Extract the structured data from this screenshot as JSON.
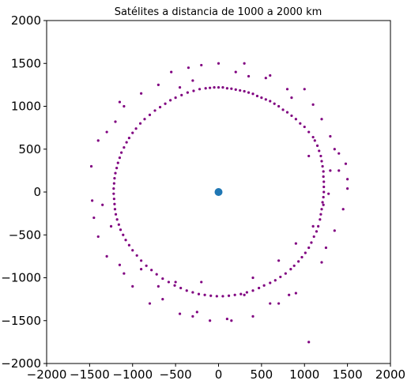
{
  "chart_data": {
    "type": "scatter",
    "title": "Satélites a distancia de 1000 a 2000 km",
    "xlabel": "",
    "ylabel": "",
    "xlim": [
      -2000,
      2000
    ],
    "ylim": [
      -2000,
      2000
    ],
    "xticks": [
      -2000,
      -1500,
      -1000,
      -500,
      0,
      500,
      1000,
      1500,
      2000
    ],
    "yticks": [
      -2000,
      -1500,
      -1000,
      -500,
      0,
      500,
      1000,
      1500,
      2000
    ],
    "grid": false,
    "colors": {
      "satellites": "#800080",
      "center": "#1f77b4"
    },
    "series": [
      {
        "name": "",
        "marker": "small-dot",
        "points": [
          [
            0,
            1220
          ],
          [
            -50,
            1220
          ],
          [
            -100,
            1215
          ],
          [
            50,
            1220
          ],
          [
            100,
            1210
          ],
          [
            150,
            1205
          ],
          [
            200,
            1195
          ],
          [
            250,
            1185
          ],
          [
            300,
            1175
          ],
          [
            350,
            1160
          ],
          [
            400,
            1145
          ],
          [
            450,
            1120
          ],
          [
            500,
            1100
          ],
          [
            550,
            1080
          ],
          [
            600,
            1060
          ],
          [
            650,
            1030
          ],
          [
            700,
            1000
          ],
          [
            750,
            960
          ],
          [
            800,
            930
          ],
          [
            850,
            890
          ],
          [
            900,
            850
          ],
          [
            950,
            800
          ],
          [
            1000,
            760
          ],
          [
            1050,
            700
          ],
          [
            1100,
            640
          ],
          [
            1120,
            600
          ],
          [
            1150,
            540
          ],
          [
            1170,
            480
          ],
          [
            1190,
            420
          ],
          [
            1200,
            360
          ],
          [
            1210,
            300
          ],
          [
            1220,
            240
          ],
          [
            1220,
            180
          ],
          [
            1225,
            120
          ],
          [
            1225,
            60
          ],
          [
            1225,
            0
          ],
          [
            1220,
            -60
          ],
          [
            1210,
            -120
          ],
          [
            1200,
            -200
          ],
          [
            1190,
            -260
          ],
          [
            1180,
            -320
          ],
          [
            1160,
            -400
          ],
          [
            1140,
            -460
          ],
          [
            1110,
            -520
          ],
          [
            1080,
            -590
          ],
          [
            1050,
            -650
          ],
          [
            1010,
            -710
          ],
          [
            970,
            -760
          ],
          [
            930,
            -810
          ],
          [
            880,
            -860
          ],
          [
            840,
            -900
          ],
          [
            780,
            -950
          ],
          [
            720,
            -990
          ],
          [
            660,
            -1030
          ],
          [
            600,
            -1060
          ],
          [
            530,
            -1090
          ],
          [
            470,
            -1120
          ],
          [
            400,
            -1150
          ],
          [
            330,
            -1170
          ],
          [
            260,
            -1190
          ],
          [
            190,
            -1200
          ],
          [
            120,
            -1210
          ],
          [
            50,
            -1215
          ],
          [
            -20,
            -1215
          ],
          [
            -90,
            -1210
          ],
          [
            -160,
            -1200
          ],
          [
            -230,
            -1190
          ],
          [
            -300,
            -1170
          ],
          [
            -370,
            -1150
          ],
          [
            -440,
            -1120
          ],
          [
            -510,
            -1090
          ],
          [
            -580,
            -1050
          ],
          [
            -650,
            -1010
          ],
          [
            -720,
            -960
          ],
          [
            -780,
            -910
          ],
          [
            -840,
            -860
          ],
          [
            -900,
            -800
          ],
          [
            -950,
            -740
          ],
          [
            -1000,
            -680
          ],
          [
            -1040,
            -620
          ],
          [
            -1080,
            -560
          ],
          [
            -1110,
            -500
          ],
          [
            -1140,
            -440
          ],
          [
            -1160,
            -380
          ],
          [
            -1180,
            -320
          ],
          [
            -1195,
            -260
          ],
          [
            -1205,
            -200
          ],
          [
            -1210,
            -140
          ],
          [
            -1215,
            -80
          ],
          [
            -1220,
            -20
          ],
          [
            -1220,
            40
          ],
          [
            -1215,
            100
          ],
          [
            -1210,
            160
          ],
          [
            -1200,
            220
          ],
          [
            -1185,
            280
          ],
          [
            -1170,
            340
          ],
          [
            -1150,
            400
          ],
          [
            -1130,
            460
          ],
          [
            -1100,
            520
          ],
          [
            -1070,
            580
          ],
          [
            -1040,
            630
          ],
          [
            -1000,
            690
          ],
          [
            -960,
            740
          ],
          [
            -910,
            800
          ],
          [
            -860,
            850
          ],
          [
            -800,
            900
          ],
          [
            -740,
            950
          ],
          [
            -680,
            990
          ],
          [
            -620,
            1030
          ],
          [
            -560,
            1070
          ],
          [
            -500,
            1100
          ],
          [
            -430,
            1130
          ],
          [
            -360,
            1160
          ],
          [
            -290,
            1180
          ],
          [
            -220,
            1200
          ],
          [
            -150,
            1210
          ],
          [
            1000,
            1200
          ],
          [
            1100,
            1020
          ],
          [
            1200,
            850
          ],
          [
            1300,
            650
          ],
          [
            1400,
            450
          ],
          [
            1480,
            330
          ],
          [
            1500,
            150
          ],
          [
            1500,
            40
          ],
          [
            1450,
            -200
          ],
          [
            1350,
            -450
          ],
          [
            1250,
            -650
          ],
          [
            1200,
            -820
          ],
          [
            900,
            -1180
          ],
          [
            820,
            -1200
          ],
          [
            700,
            -1300
          ],
          [
            600,
            -1300
          ],
          [
            400,
            -1450
          ],
          [
            150,
            -1500
          ],
          [
            100,
            -1480
          ],
          [
            -100,
            -1500
          ],
          [
            -250,
            -1400
          ],
          [
            -300,
            -1450
          ],
          [
            -450,
            -1420
          ],
          [
            -650,
            -1250
          ],
          [
            -800,
            -1300
          ],
          [
            -1000,
            -1100
          ],
          [
            -1150,
            -850
          ],
          [
            -1300,
            -750
          ],
          [
            -1400,
            -520
          ],
          [
            -1450,
            -300
          ],
          [
            -1470,
            -100
          ],
          [
            -1480,
            300
          ],
          [
            -1400,
            600
          ],
          [
            -1300,
            700
          ],
          [
            -1200,
            820
          ],
          [
            -1100,
            1000
          ],
          [
            -900,
            1150
          ],
          [
            -700,
            1250
          ],
          [
            -550,
            1400
          ],
          [
            -350,
            1450
          ],
          [
            -200,
            1480
          ],
          [
            0,
            1500
          ],
          [
            200,
            1400
          ],
          [
            350,
            1350
          ],
          [
            550,
            1330
          ],
          [
            600,
            1360
          ],
          [
            850,
            1100
          ],
          [
            1050,
            420
          ],
          [
            1220,
            -150
          ],
          [
            1280,
            -20
          ],
          [
            1300,
            250
          ],
          [
            -1350,
            -150
          ],
          [
            -1250,
            -400
          ],
          [
            -1100,
            -950
          ],
          [
            -900,
            -900
          ],
          [
            -700,
            -1100
          ],
          [
            -500,
            -1050
          ],
          [
            -200,
            -1050
          ],
          [
            300,
            -1200
          ],
          [
            400,
            -1000
          ],
          [
            700,
            -800
          ],
          [
            900,
            -600
          ],
          [
            1100,
            -400
          ],
          [
            1050,
            -1750
          ],
          [
            -1150,
            1050
          ],
          [
            1400,
            250
          ],
          [
            1350,
            500
          ],
          [
            -450,
            1220
          ],
          [
            -300,
            1300
          ],
          [
            300,
            1500
          ],
          [
            800,
            1200
          ]
        ]
      },
      {
        "name": "",
        "marker": "large-dot",
        "points": [
          [
            0,
            0
          ]
        ]
      }
    ]
  }
}
